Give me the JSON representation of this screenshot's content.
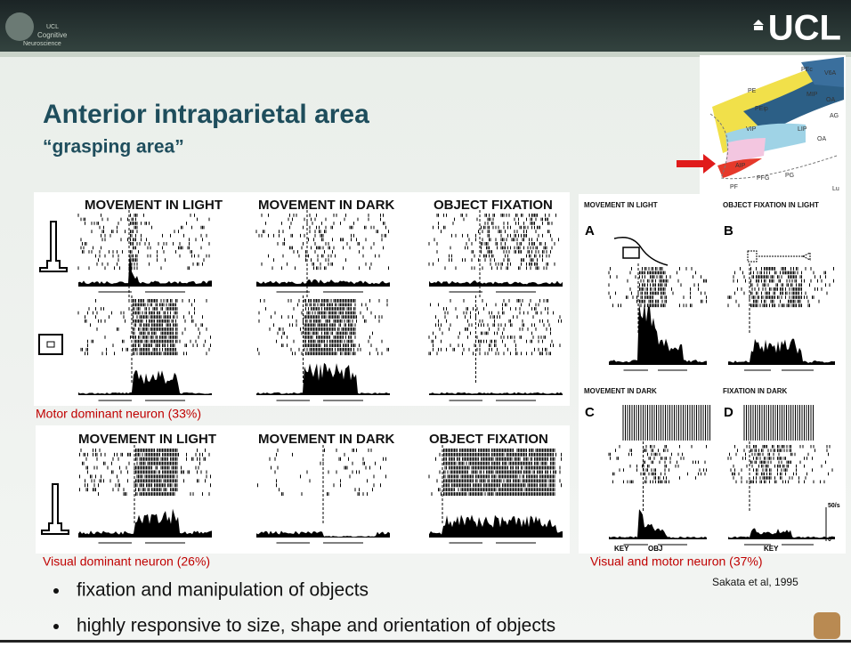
{
  "header": {
    "logo_lines": [
      "UCL",
      "Cognitive",
      "Neuroscience"
    ],
    "brand": "UCL"
  },
  "title": "Anterior intraparietal area",
  "subtitle": "“grasping area”",
  "brain_map": {
    "labels": [
      "PEc",
      "V6A",
      "PE",
      "MIP",
      "OA",
      "PEip",
      "AG",
      "VIP",
      "LIP",
      "AIP",
      "OA",
      "PF",
      "PFG",
      "PG",
      "Lu"
    ]
  },
  "figure_top": {
    "column_titles": [
      "MOVEMENT IN LIGHT",
      "MOVEMENT IN DARK",
      "OBJECT FIXATION"
    ],
    "caption": "Motor dominant neuron (33%)"
  },
  "figure_bottom": {
    "column_titles": [
      "MOVEMENT IN LIGHT",
      "MOVEMENT IN DARK",
      "OBJECT FIXATION"
    ],
    "caption": "Visual dominant neuron (26%)"
  },
  "figure_right": {
    "panels": [
      {
        "title": "MOVEMENT IN LIGHT",
        "letter": "A"
      },
      {
        "title": "OBJECT FIXATION IN LIGHT",
        "letter": "B"
      },
      {
        "title": "MOVEMENT IN DARK",
        "letter": "C"
      },
      {
        "title": "FIXATION IN DARK",
        "letter": "D"
      }
    ],
    "axis_labels": [
      "KEY",
      "OBJ",
      "KEY"
    ],
    "scale": [
      "50/s",
      "0"
    ],
    "caption": "Visual and motor neuron (37%)"
  },
  "citation": "Sakata et al, 1995",
  "bullets": [
    "fixation and manipulation of objects",
    "highly responsive to size, shape and orientation of objects"
  ]
}
